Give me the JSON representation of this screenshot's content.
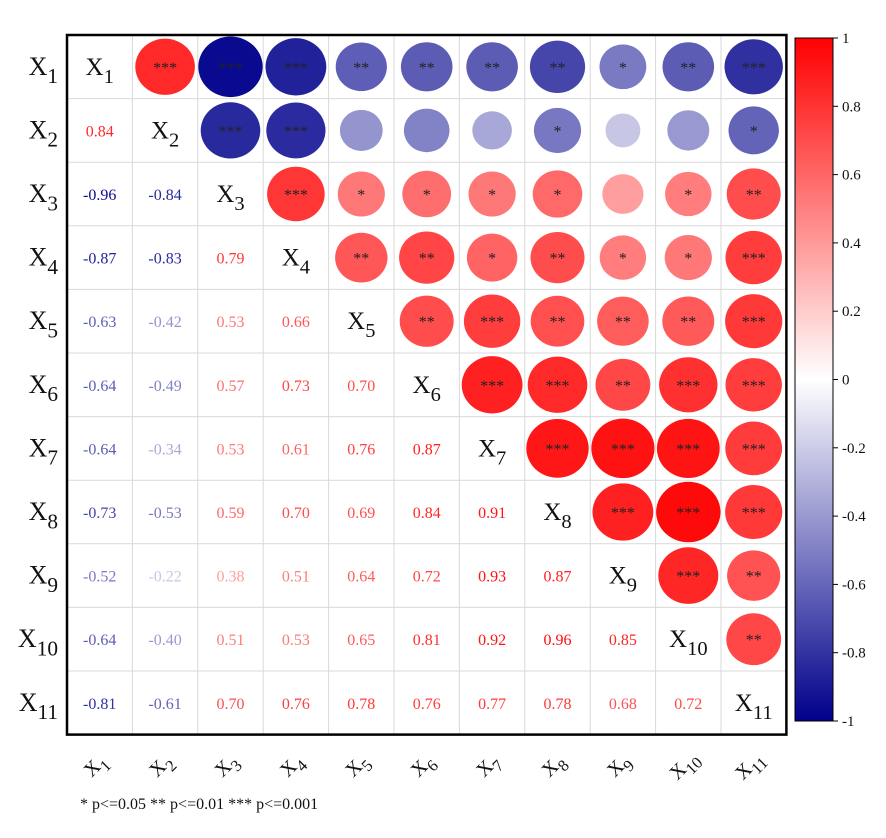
{
  "chart_data": {
    "type": "heatmap",
    "title": "",
    "variables": [
      {
        "base": "X",
        "sub": "1"
      },
      {
        "base": "X",
        "sub": "2"
      },
      {
        "base": "X",
        "sub": "3"
      },
      {
        "base": "X",
        "sub": "4"
      },
      {
        "base": "X",
        "sub": "5"
      },
      {
        "base": "X",
        "sub": "6"
      },
      {
        "base": "X",
        "sub": "7"
      },
      {
        "base": "X",
        "sub": "8"
      },
      {
        "base": "X",
        "sub": "9"
      },
      {
        "base": "X",
        "sub": "10"
      },
      {
        "base": "X",
        "sub": "11"
      }
    ],
    "lower_values": [
      [],
      [
        0.84
      ],
      [
        -0.96,
        -0.84
      ],
      [
        -0.87,
        -0.83,
        0.79
      ],
      [
        -0.63,
        -0.42,
        0.53,
        0.66
      ],
      [
        -0.64,
        -0.49,
        0.57,
        0.73,
        0.7
      ],
      [
        -0.64,
        -0.34,
        0.53,
        0.61,
        0.76,
        0.87
      ],
      [
        -0.73,
        -0.53,
        0.59,
        0.7,
        0.69,
        0.84,
        0.91
      ],
      [
        -0.52,
        -0.22,
        0.38,
        0.51,
        0.64,
        0.72,
        0.93,
        0.87
      ],
      [
        -0.64,
        -0.4,
        0.51,
        0.53,
        0.65,
        0.81,
        0.92,
        0.96,
        0.85
      ],
      [
        -0.81,
        -0.61,
        0.7,
        0.76,
        0.78,
        0.76,
        0.77,
        0.78,
        0.68,
        0.72
      ]
    ],
    "upper_stars": [
      [
        "",
        "***",
        "***",
        "***",
        "**",
        "**",
        "**",
        "**",
        "*",
        "**",
        "***"
      ],
      [
        "",
        "",
        "***",
        "***",
        "",
        "",
        "",
        "*",
        "",
        "",
        "*"
      ],
      [
        "",
        "",
        "",
        "***",
        "*",
        "*",
        "*",
        "*",
        "",
        "*",
        "**"
      ],
      [
        "",
        "",
        "",
        "",
        "**",
        "**",
        "*",
        "**",
        "*",
        "*",
        "***"
      ],
      [
        "",
        "",
        "",
        "",
        "",
        "**",
        "***",
        "**",
        "**",
        "**",
        "***"
      ],
      [
        "",
        "",
        "",
        "",
        "",
        "",
        "***",
        "***",
        "**",
        "***",
        "***"
      ],
      [
        "",
        "",
        "",
        "",
        "",
        "",
        "",
        "***",
        "***",
        "***",
        "***"
      ],
      [
        "",
        "",
        "",
        "",
        "",
        "",
        "",
        "",
        "***",
        "***",
        "***"
      ],
      [
        "",
        "",
        "",
        "",
        "",
        "",
        "",
        "",
        "",
        "***",
        "**"
      ],
      [
        "",
        "",
        "",
        "",
        "",
        "",
        "",
        "",
        "",
        "",
        "**"
      ],
      [
        "",
        "",
        "",
        "",
        "",
        "",
        "",
        "",
        "",
        "",
        ""
      ]
    ],
    "colorbar": {
      "range": [
        -1,
        1
      ],
      "ticks": [
        "1",
        "0.8",
        "0.6",
        "0.4",
        "0.2",
        "0",
        "-0.2",
        "-0.4",
        "-0.6",
        "-0.8",
        "-1"
      ],
      "colors": {
        "negative": "#00008b",
        "zero": "#ffffff",
        "positive": "#ff0000"
      }
    },
    "significance_note": "* p<=0.05  ** p<=0.01  *** p<=0.001"
  }
}
